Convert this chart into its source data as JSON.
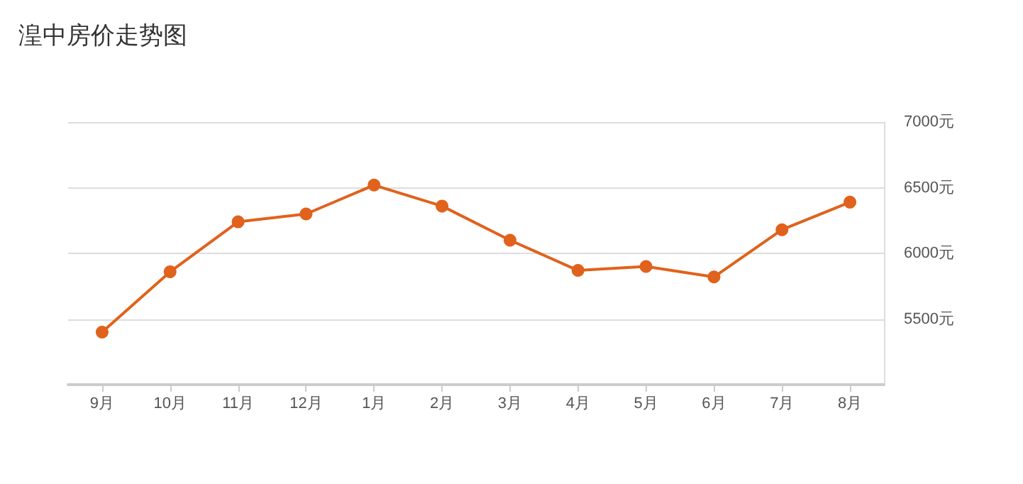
{
  "chart_data": {
    "type": "line",
    "title": "湟中房价走势图",
    "categories": [
      "9月",
      "10月",
      "11月",
      "12月",
      "1月",
      "2月",
      "3月",
      "4月",
      "5月",
      "6月",
      "7月",
      "8月"
    ],
    "series": [
      {
        "color": "#e0621c",
        "values": [
          5400,
          5860,
          6240,
          6300,
          6520,
          6360,
          6100,
          5870,
          5900,
          5820,
          6180,
          6390
        ]
      }
    ],
    "ylim": [
      5000,
      7000
    ],
    "yticks": [
      {
        "value": 5000,
        "label": null
      },
      {
        "value": 5500,
        "label": "5500元"
      },
      {
        "value": 6000,
        "label": "6000元"
      },
      {
        "value": 6500,
        "label": "6500元"
      },
      {
        "value": 7000,
        "label": "7000元"
      }
    ],
    "grid": "y",
    "marker": "circle",
    "line_style": "solid"
  }
}
